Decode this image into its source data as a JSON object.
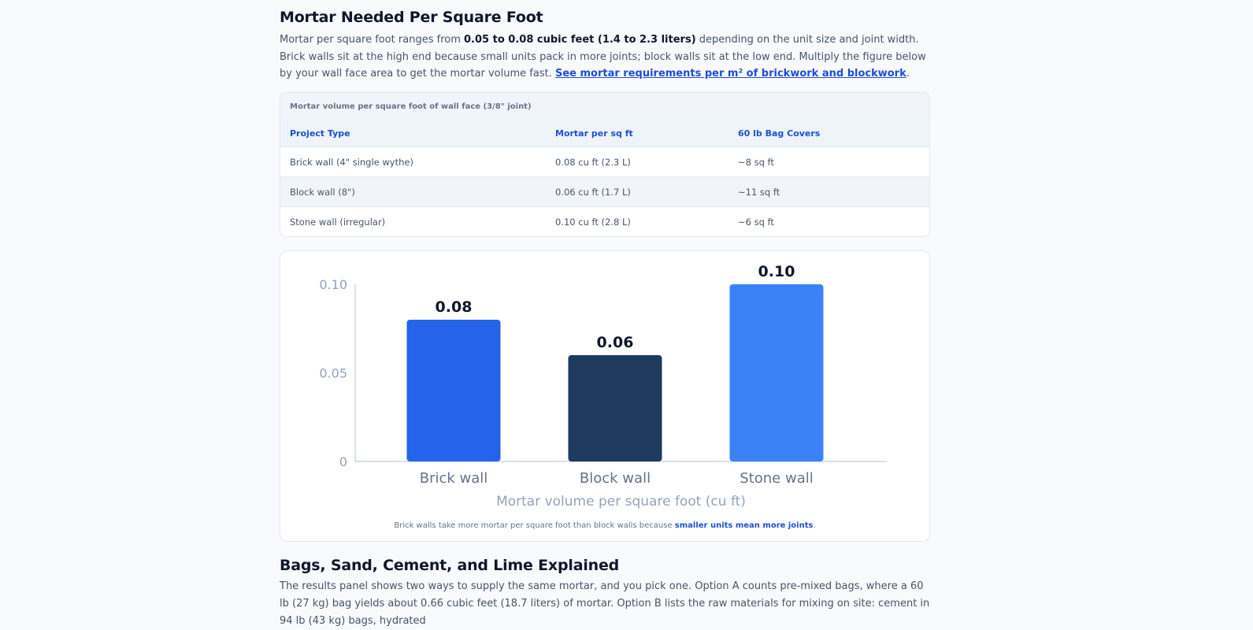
{
  "section1": {
    "title": "Mortar Needed Per Square Foot",
    "intro_before": "Mortar per square foot ranges from ",
    "intro_bold": "0.05 to 0.08 cubic feet (1.4 to 2.3 liters)",
    "intro_after": " depending on the unit size and joint width. Brick walls sit at the high end because small units pack in more joints; block walls sit at the low end. Multiply the figure below by your wall face area to get the mortar volume fast. ",
    "link_text": "See mortar requirements per m² of brickwork and blockwork",
    "link_after": "."
  },
  "table": {
    "caption": "Mortar volume per square foot of wall face (3/8\" joint)",
    "headers": [
      "Project Type",
      "Mortar per sq ft",
      "60 lb Bag Covers"
    ],
    "rows": [
      [
        "Brick wall (4\" single wythe)",
        "0.08 cu ft (2.3 L)",
        "~8 sq ft"
      ],
      [
        "Block wall (8\")",
        "0.06 cu ft (1.7 L)",
        "~11 sq ft"
      ],
      [
        "Stone wall (irregular)",
        "0.10 cu ft (2.8 L)",
        "~6 sq ft"
      ]
    ]
  },
  "chart_data": {
    "type": "bar",
    "categories": [
      "Brick wall",
      "Block wall",
      "Stone wall"
    ],
    "values": [
      0.08,
      0.06,
      0.1
    ],
    "value_labels": [
      "0.08",
      "0.06",
      "0.10"
    ],
    "colors": [
      "#2563eb",
      "#1e3a5f",
      "#3b82f6"
    ],
    "xlabel": "Mortar volume per square foot (cu ft)",
    "ylabel": "",
    "ylim": [
      0,
      0.1
    ],
    "yticks": [
      0,
      0.05,
      0.1
    ],
    "ytick_labels": [
      "0",
      "0.05",
      "0.10"
    ],
    "grid": false,
    "note_before": "Brick walls take more mortar per square foot than block walls because ",
    "note_bold": "smaller units mean more joints",
    "note_after": "."
  },
  "section2": {
    "title": "Bags, Sand, Cement, and Lime Explained",
    "body": "The results panel shows two ways to supply the same mortar, and you pick one. Option A counts pre-mixed bags, where a 60 lb (27 kg) bag yields about 0.66 cubic feet (18.7 liters) of mortar. Option B lists the raw materials for mixing on site: cement in 94 lb (43 kg) bags, hydrated"
  }
}
